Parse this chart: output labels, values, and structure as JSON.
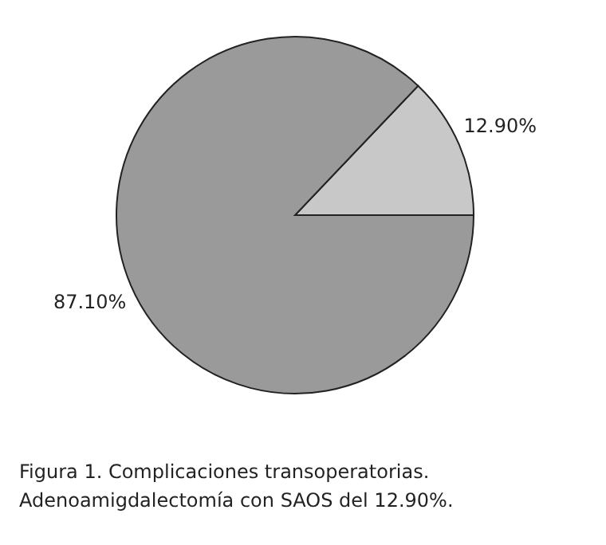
{
  "chart_data": {
    "type": "pie",
    "categories": [
      null,
      null
    ],
    "values": [
      12.9,
      87.1
    ],
    "colors": [
      "#c8c8c8",
      "#9a9a9a"
    ],
    "value_labels": [
      "12.90%",
      "87.10%"
    ],
    "annotations": [
      "Figura 1. Complicaciones transoperatorias.",
      "Adenoamigdalectomía con SAOS del 12.90%."
    ]
  }
}
